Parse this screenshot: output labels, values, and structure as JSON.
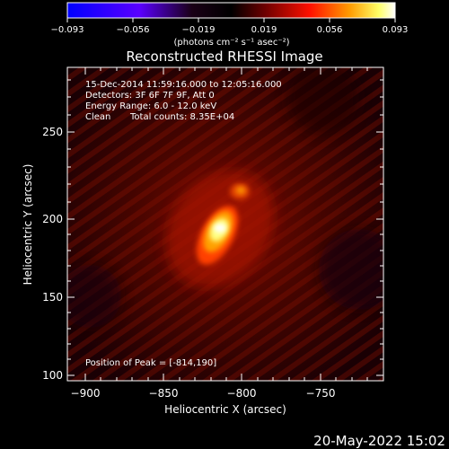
{
  "colorbar": {
    "ticks": [
      "−0.093",
      "−0.056",
      "−0.019",
      "0.019",
      "0.056",
      "0.093"
    ],
    "units_label": "(photons cm⁻² s⁻¹ asec⁻²)",
    "colors": [
      "#0000ff",
      "#7a00ff",
      "#000000",
      "#6a0000",
      "#ff0000",
      "#ff8c00",
      "#ffff80",
      "#ffffff"
    ]
  },
  "title": "Reconstructed RHESSI Image",
  "info": {
    "line1": "15-Dec-2014 11:59:16.000 to 12:05:16.000",
    "line2": "Detectors: 3F 6F 7F 9F, Att 0",
    "line3": "Energy Range: 6.0 - 12.0 keV",
    "line4_left": "Clean",
    "line4_right": "Total counts: 8.35E+04"
  },
  "peak_label": "Position of Peak = [-814,190]",
  "xaxis": {
    "label": "Heliocentric X (arcsec)",
    "ticks": [
      "−900",
      "−850",
      "−800",
      "−750"
    ],
    "range": [
      -915,
      -713
    ]
  },
  "yaxis": {
    "label": "Heliocentric Y (arcsec)",
    "ticks": [
      "100",
      "150",
      "200",
      "250"
    ],
    "range": [
      97,
      298
    ]
  },
  "timestamp": "20-May-2022 15:02"
}
